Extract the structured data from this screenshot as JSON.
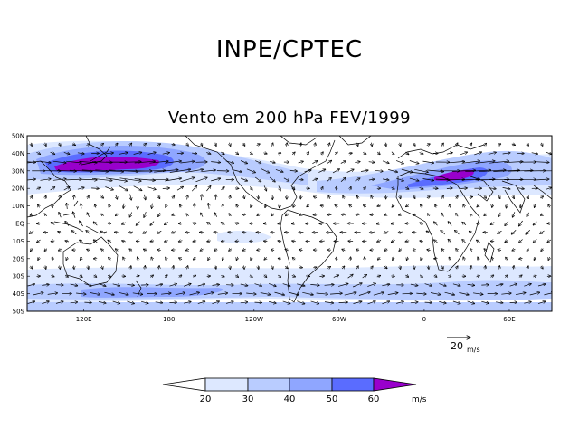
{
  "header": {
    "org": "INPE/CPTEC"
  },
  "map": {
    "title": "Vento em 200 hPa FEV/1999",
    "lat_labels": [
      "50N",
      "40N",
      "30N",
      "20N",
      "10N",
      "EQ",
      "10S",
      "20S",
      "30S",
      "40S",
      "50S"
    ],
    "lat_values": [
      50,
      40,
      30,
      20,
      10,
      0,
      -10,
      -20,
      -30,
      -40,
      -50
    ],
    "lon_labels": [
      "120E",
      "180",
      "120W",
      "60W",
      "0",
      "60E"
    ],
    "lon_values": [
      120,
      180,
      240,
      300,
      360,
      420
    ],
    "lon_range": [
      80,
      450
    ],
    "lat_range": [
      -50,
      50
    ]
  },
  "reference_vector": {
    "value": "20",
    "unit": "m/s"
  },
  "colorbar": {
    "labels": [
      "20",
      "30",
      "40",
      "50",
      "60"
    ],
    "unit": "m/s",
    "colors": [
      "#ffffff",
      "#dde8ff",
      "#b9ccff",
      "#8fa6ff",
      "#5a6cff",
      "#9900cc"
    ]
  },
  "colors": {
    "land_outline": "#000000",
    "arrow": "#000000"
  }
}
